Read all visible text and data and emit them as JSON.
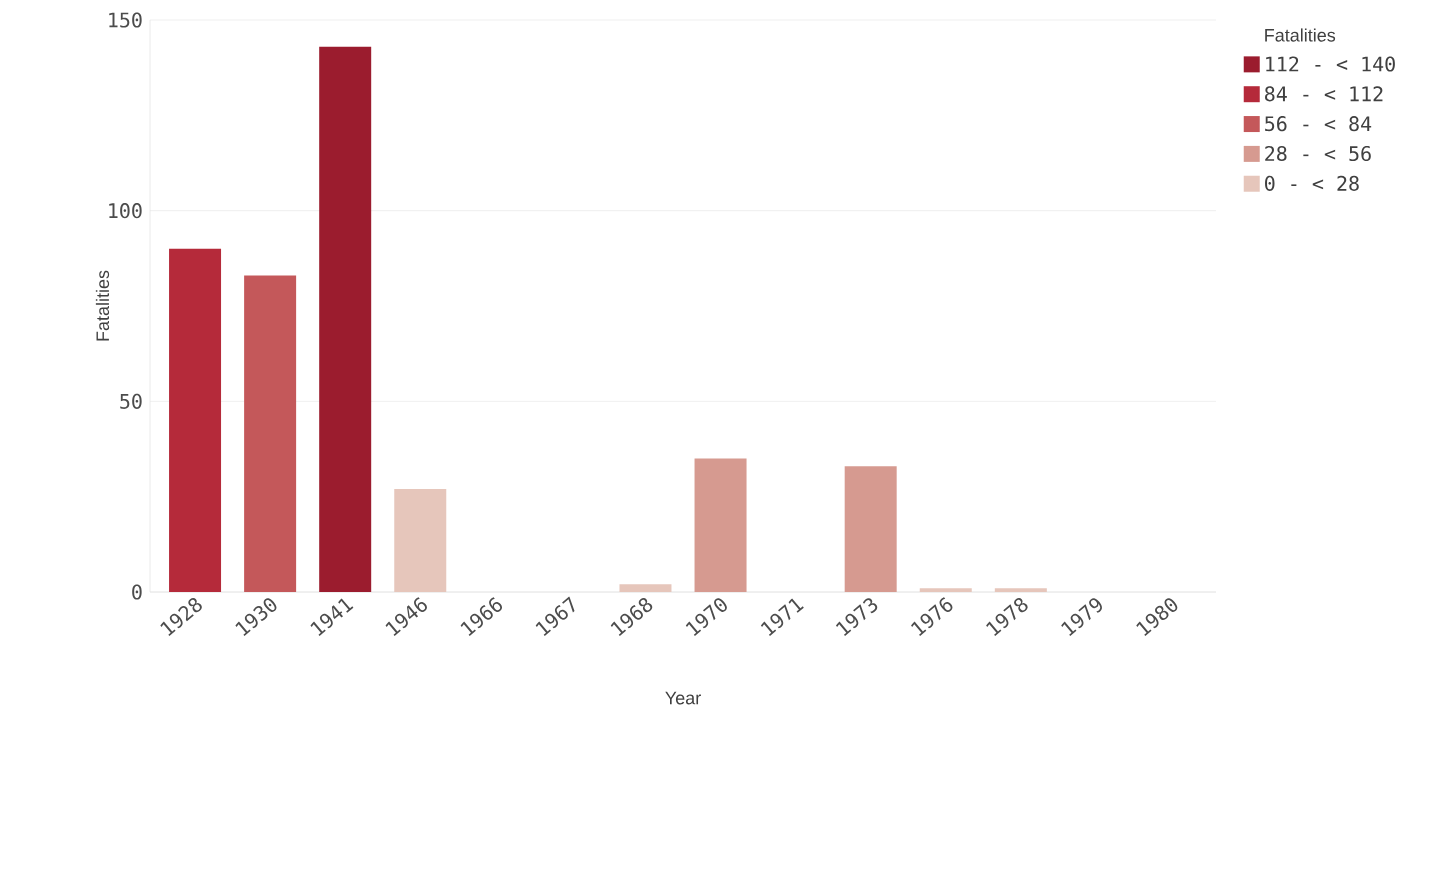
{
  "chart_data": {
    "type": "bar",
    "xlabel": "Year",
    "ylabel": "Fatalities",
    "legend_title": "Fatalities",
    "categories": [
      "1928",
      "1930",
      "1941",
      "1946",
      "1966",
      "1967",
      "1968",
      "1970",
      "1971",
      "1973",
      "1976",
      "1978",
      "1979",
      "1980"
    ],
    "series": [
      {
        "name": "112 - < 140",
        "color": "#9b1c2e",
        "values": [
          null,
          null,
          143,
          null,
          null,
          null,
          null,
          null,
          null,
          null,
          null,
          null,
          null,
          null
        ]
      },
      {
        "name": "84 - < 112",
        "color": "#b52a3a",
        "values": [
          90,
          null,
          null,
          null,
          null,
          null,
          null,
          null,
          null,
          null,
          null,
          null,
          null,
          null
        ]
      },
      {
        "name": "56 - < 84",
        "color": "#c4585a",
        "values": [
          null,
          83,
          null,
          null,
          null,
          null,
          null,
          null,
          null,
          null,
          null,
          null,
          null,
          null
        ]
      },
      {
        "name": "28 - < 56",
        "color": "#d69a90",
        "values": [
          null,
          null,
          null,
          null,
          null,
          null,
          null,
          35,
          null,
          33,
          null,
          null,
          null,
          null
        ]
      },
      {
        "name": "0 - < 28",
        "color": "#e6c6bb",
        "values": [
          null,
          null,
          null,
          27,
          0,
          0,
          2,
          null,
          0,
          null,
          1,
          1,
          0,
          0
        ]
      }
    ],
    "stacked": true,
    "ylim": [
      0,
      150
    ],
    "yticks": [
      0,
      50,
      100,
      150
    ],
    "grid": "y",
    "legend": "top right"
  }
}
